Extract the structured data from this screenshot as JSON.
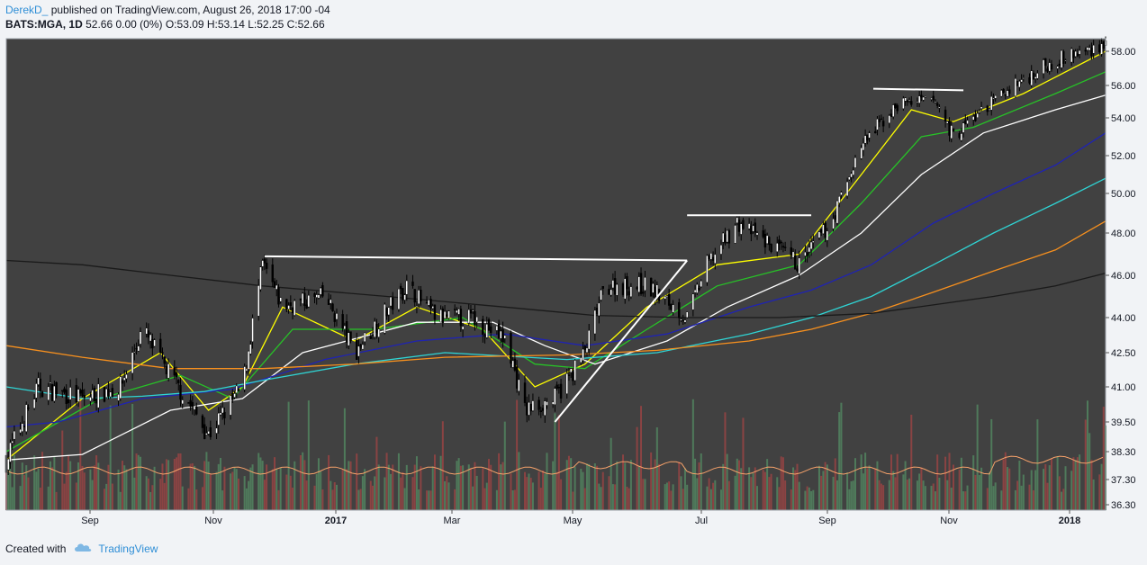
{
  "header": {
    "author": "DerekD_",
    "published_text": "published on TradingView.com, August 26, 2018 17:00 -04",
    "symbol": "BATS:MGA, 1D",
    "quote": "52.66 0.00 (0%) O:53.09 H:53.14 L:52.25 C:52.66"
  },
  "footer": {
    "created_with": "Created with",
    "brand": "TradingView"
  },
  "colors": {
    "chart_bg": "#414141",
    "up_candle": "#ffffff",
    "down_candle": "#000000",
    "vol_up": "#4f7a5b",
    "vol_down": "#8a4343",
    "ma_fast": "#ffff00",
    "ma_green": "#27c227",
    "ma_white": "#ffffff",
    "ma_blue": "#1f23b3",
    "ma_cyan": "#2fd4d4",
    "ma_orange": "#f7901e",
    "ma_black": "#1a1a1a",
    "trendline": "#ffffff"
  },
  "chart_data": {
    "type": "candlestick",
    "symbol": "BATS:MGA",
    "interval": "1D",
    "x_tick_labels": [
      "Sep",
      "Nov",
      "2017",
      "Mar",
      "May",
      "Jul",
      "Sep",
      "Nov",
      "2018"
    ],
    "y_tick_labels": [
      "58.00",
      "56.00",
      "54.00",
      "52.00",
      "50.00",
      "48.00",
      "46.00",
      "44.00",
      "42.50",
      "41.00",
      "39.50",
      "38.30",
      "37.30",
      "36.30"
    ],
    "x_range": [
      "2016-07-25",
      "2018-01-25"
    ],
    "series": [
      {
        "kind": "close_path",
        "points": [
          [
            "2016-07-25",
            38.0
          ],
          [
            "2016-08-10",
            41.0
          ],
          [
            "2016-09-01",
            40.5
          ],
          [
            "2016-09-20",
            41.0
          ],
          [
            "2016-10-01",
            43.5
          ],
          [
            "2016-10-15",
            41.5
          ],
          [
            "2016-11-03",
            39.0
          ],
          [
            "2016-11-20",
            41.0
          ],
          [
            "2016-11-30",
            46.5
          ],
          [
            "2016-12-10",
            44.5
          ],
          [
            "2016-12-31",
            45.0
          ],
          [
            "2017-01-15",
            42.5
          ],
          [
            "2017-02-10",
            45.5
          ],
          [
            "2017-02-25",
            44.0
          ],
          [
            "2017-03-15",
            44.0
          ],
          [
            "2017-04-01",
            43.0
          ],
          [
            "2017-04-10",
            40.0
          ],
          [
            "2017-04-25",
            40.5
          ],
          [
            "2017-05-10",
            42.5
          ],
          [
            "2017-05-20",
            45.5
          ],
          [
            "2017-06-10",
            45.5
          ],
          [
            "2017-06-30",
            44.0
          ],
          [
            "2017-07-10",
            46.5
          ],
          [
            "2017-07-25",
            48.5
          ],
          [
            "2017-08-10",
            47.5
          ],
          [
            "2017-08-25",
            46.5
          ],
          [
            "2017-09-10",
            48.5
          ],
          [
            "2017-09-25",
            52.5
          ],
          [
            "2017-10-15",
            55.0
          ],
          [
            "2017-11-01",
            55.0
          ],
          [
            "2017-11-10",
            53.0
          ],
          [
            "2017-11-25",
            54.5
          ],
          [
            "2017-12-10",
            56.0
          ],
          [
            "2017-12-31",
            57.5
          ],
          [
            "2018-01-15",
            58.0
          ],
          [
            "2018-01-25",
            58.5
          ]
        ]
      },
      {
        "kind": "moving_average",
        "color": "#ffff00",
        "points": [
          [
            "2016-07-25",
            38.0
          ],
          [
            "2016-09-01",
            40.5
          ],
          [
            "2016-10-10",
            42.5
          ],
          [
            "2016-11-03",
            40.0
          ],
          [
            "2016-11-20",
            41.0
          ],
          [
            "2016-12-10",
            44.5
          ],
          [
            "2017-01-15",
            43.0
          ],
          [
            "2017-02-15",
            44.5
          ],
          [
            "2017-03-20",
            43.5
          ],
          [
            "2017-04-15",
            41.0
          ],
          [
            "2017-05-10",
            42.0
          ],
          [
            "2017-06-10",
            44.5
          ],
          [
            "2017-07-15",
            46.5
          ],
          [
            "2017-08-25",
            47.0
          ],
          [
            "2017-09-25",
            51.0
          ],
          [
            "2017-10-20",
            54.5
          ],
          [
            "2017-11-10",
            53.8
          ],
          [
            "2017-12-15",
            55.5
          ],
          [
            "2018-01-25",
            58.0
          ]
        ]
      },
      {
        "kind": "moving_average",
        "color": "#27c227",
        "points": [
          [
            "2016-07-25",
            38.3
          ],
          [
            "2016-09-10",
            40.5
          ],
          [
            "2016-10-20",
            41.5
          ],
          [
            "2016-11-15",
            40.5
          ],
          [
            "2016-12-15",
            43.5
          ],
          [
            "2017-01-25",
            43.5
          ],
          [
            "2017-03-10",
            44.0
          ],
          [
            "2017-04-15",
            42.0
          ],
          [
            "2017-05-10",
            41.8
          ],
          [
            "2017-06-10",
            43.5
          ],
          [
            "2017-07-15",
            45.5
          ],
          [
            "2017-08-25",
            46.5
          ],
          [
            "2017-09-25",
            49.5
          ],
          [
            "2017-10-25",
            53.0
          ],
          [
            "2017-11-20",
            53.5
          ],
          [
            "2017-12-31",
            55.5
          ],
          [
            "2018-01-25",
            56.8
          ]
        ]
      },
      {
        "kind": "moving_average",
        "color": "#ffffff",
        "points": [
          [
            "2016-07-25",
            38.0
          ],
          [
            "2016-09-01",
            38.2
          ],
          [
            "2016-10-15",
            40.0
          ],
          [
            "2016-11-20",
            40.5
          ],
          [
            "2016-12-20",
            42.5
          ],
          [
            "2017-02-15",
            43.8
          ],
          [
            "2017-03-25",
            43.8
          ],
          [
            "2017-04-20",
            42.8
          ],
          [
            "2017-05-15",
            42.0
          ],
          [
            "2017-06-20",
            43.0
          ],
          [
            "2017-07-20",
            44.5
          ],
          [
            "2017-08-25",
            46.0
          ],
          [
            "2017-09-25",
            48.0
          ],
          [
            "2017-10-25",
            51.0
          ],
          [
            "2017-11-25",
            53.2
          ],
          [
            "2017-12-31",
            54.5
          ],
          [
            "2018-01-25",
            55.4
          ]
        ]
      },
      {
        "kind": "moving_average",
        "color": "#1f23b3",
        "points": [
          [
            "2016-07-25",
            39.3
          ],
          [
            "2016-08-20",
            39.5
          ],
          [
            "2016-10-01",
            40.5
          ],
          [
            "2016-11-15",
            40.9
          ],
          [
            "2016-12-31",
            42.2
          ],
          [
            "2017-02-15",
            43.0
          ],
          [
            "2017-03-31",
            43.3
          ],
          [
            "2017-05-10",
            42.8
          ],
          [
            "2017-06-20",
            43.3
          ],
          [
            "2017-07-31",
            44.5
          ],
          [
            "2017-08-31",
            45.3
          ],
          [
            "2017-09-30",
            46.5
          ],
          [
            "2017-10-31",
            48.5
          ],
          [
            "2017-11-30",
            50.0
          ],
          [
            "2017-12-31",
            51.5
          ],
          [
            "2018-01-25",
            53.2
          ]
        ]
      },
      {
        "kind": "moving_average",
        "color": "#2fd4d4",
        "points": [
          [
            "2016-07-25",
            41.0
          ],
          [
            "2016-09-01",
            40.5
          ],
          [
            "2016-10-01",
            40.6
          ],
          [
            "2016-11-01",
            40.8
          ],
          [
            "2016-12-01",
            41.3
          ],
          [
            "2017-01-15",
            42.0
          ],
          [
            "2017-03-01",
            42.5
          ],
          [
            "2017-05-01",
            42.2
          ],
          [
            "2017-06-15",
            42.5
          ],
          [
            "2017-07-31",
            43.3
          ],
          [
            "2017-08-31",
            44.0
          ],
          [
            "2017-09-30",
            45.0
          ],
          [
            "2017-10-31",
            46.5
          ],
          [
            "2017-11-30",
            48.0
          ],
          [
            "2017-12-31",
            49.5
          ],
          [
            "2018-01-25",
            50.8
          ]
        ]
      },
      {
        "kind": "moving_average",
        "color": "#f7901e",
        "points": [
          [
            "2016-07-25",
            42.8
          ],
          [
            "2016-09-01",
            42.3
          ],
          [
            "2016-10-15",
            41.8
          ],
          [
            "2016-11-30",
            41.8
          ],
          [
            "2017-01-15",
            42.0
          ],
          [
            "2017-03-01",
            42.3
          ],
          [
            "2017-05-01",
            42.4
          ],
          [
            "2017-06-15",
            42.6
          ],
          [
            "2017-07-31",
            43.0
          ],
          [
            "2017-08-31",
            43.5
          ],
          [
            "2017-09-30",
            44.2
          ],
          [
            "2017-10-31",
            45.2
          ],
          [
            "2017-11-30",
            46.2
          ],
          [
            "2017-12-31",
            47.2
          ],
          [
            "2018-01-25",
            48.6
          ]
        ]
      },
      {
        "kind": "moving_average",
        "color": "#1a1a1a",
        "points": [
          [
            "2016-07-25",
            46.7
          ],
          [
            "2016-09-01",
            46.5
          ],
          [
            "2016-10-15",
            46.0
          ],
          [
            "2016-11-30",
            45.5
          ],
          [
            "2017-01-31",
            45.0
          ],
          [
            "2017-03-31",
            44.5
          ],
          [
            "2017-05-15",
            44.1
          ],
          [
            "2017-06-30",
            44.0
          ],
          [
            "2017-08-15",
            44.0
          ],
          [
            "2017-09-30",
            44.2
          ],
          [
            "2017-10-31",
            44.6
          ],
          [
            "2017-11-30",
            45.0
          ],
          [
            "2017-12-31",
            45.5
          ],
          [
            "2018-01-25",
            46.1
          ]
        ]
      }
    ],
    "drawings": [
      {
        "kind": "resistance_line",
        "from": [
          "2016-12-01",
          46.9
        ],
        "to": [
          "2017-06-30",
          46.7
        ]
      },
      {
        "kind": "trendline",
        "from": [
          "2017-04-25",
          39.5
        ],
        "to": [
          "2017-06-30",
          46.7
        ]
      },
      {
        "kind": "resistance_line",
        "from": [
          "2017-06-30",
          48.9
        ],
        "to": [
          "2017-08-31",
          48.9
        ]
      },
      {
        "kind": "resistance_line",
        "from": [
          "2017-10-01",
          55.8
        ],
        "to": [
          "2017-11-15",
          55.7
        ]
      }
    ]
  }
}
